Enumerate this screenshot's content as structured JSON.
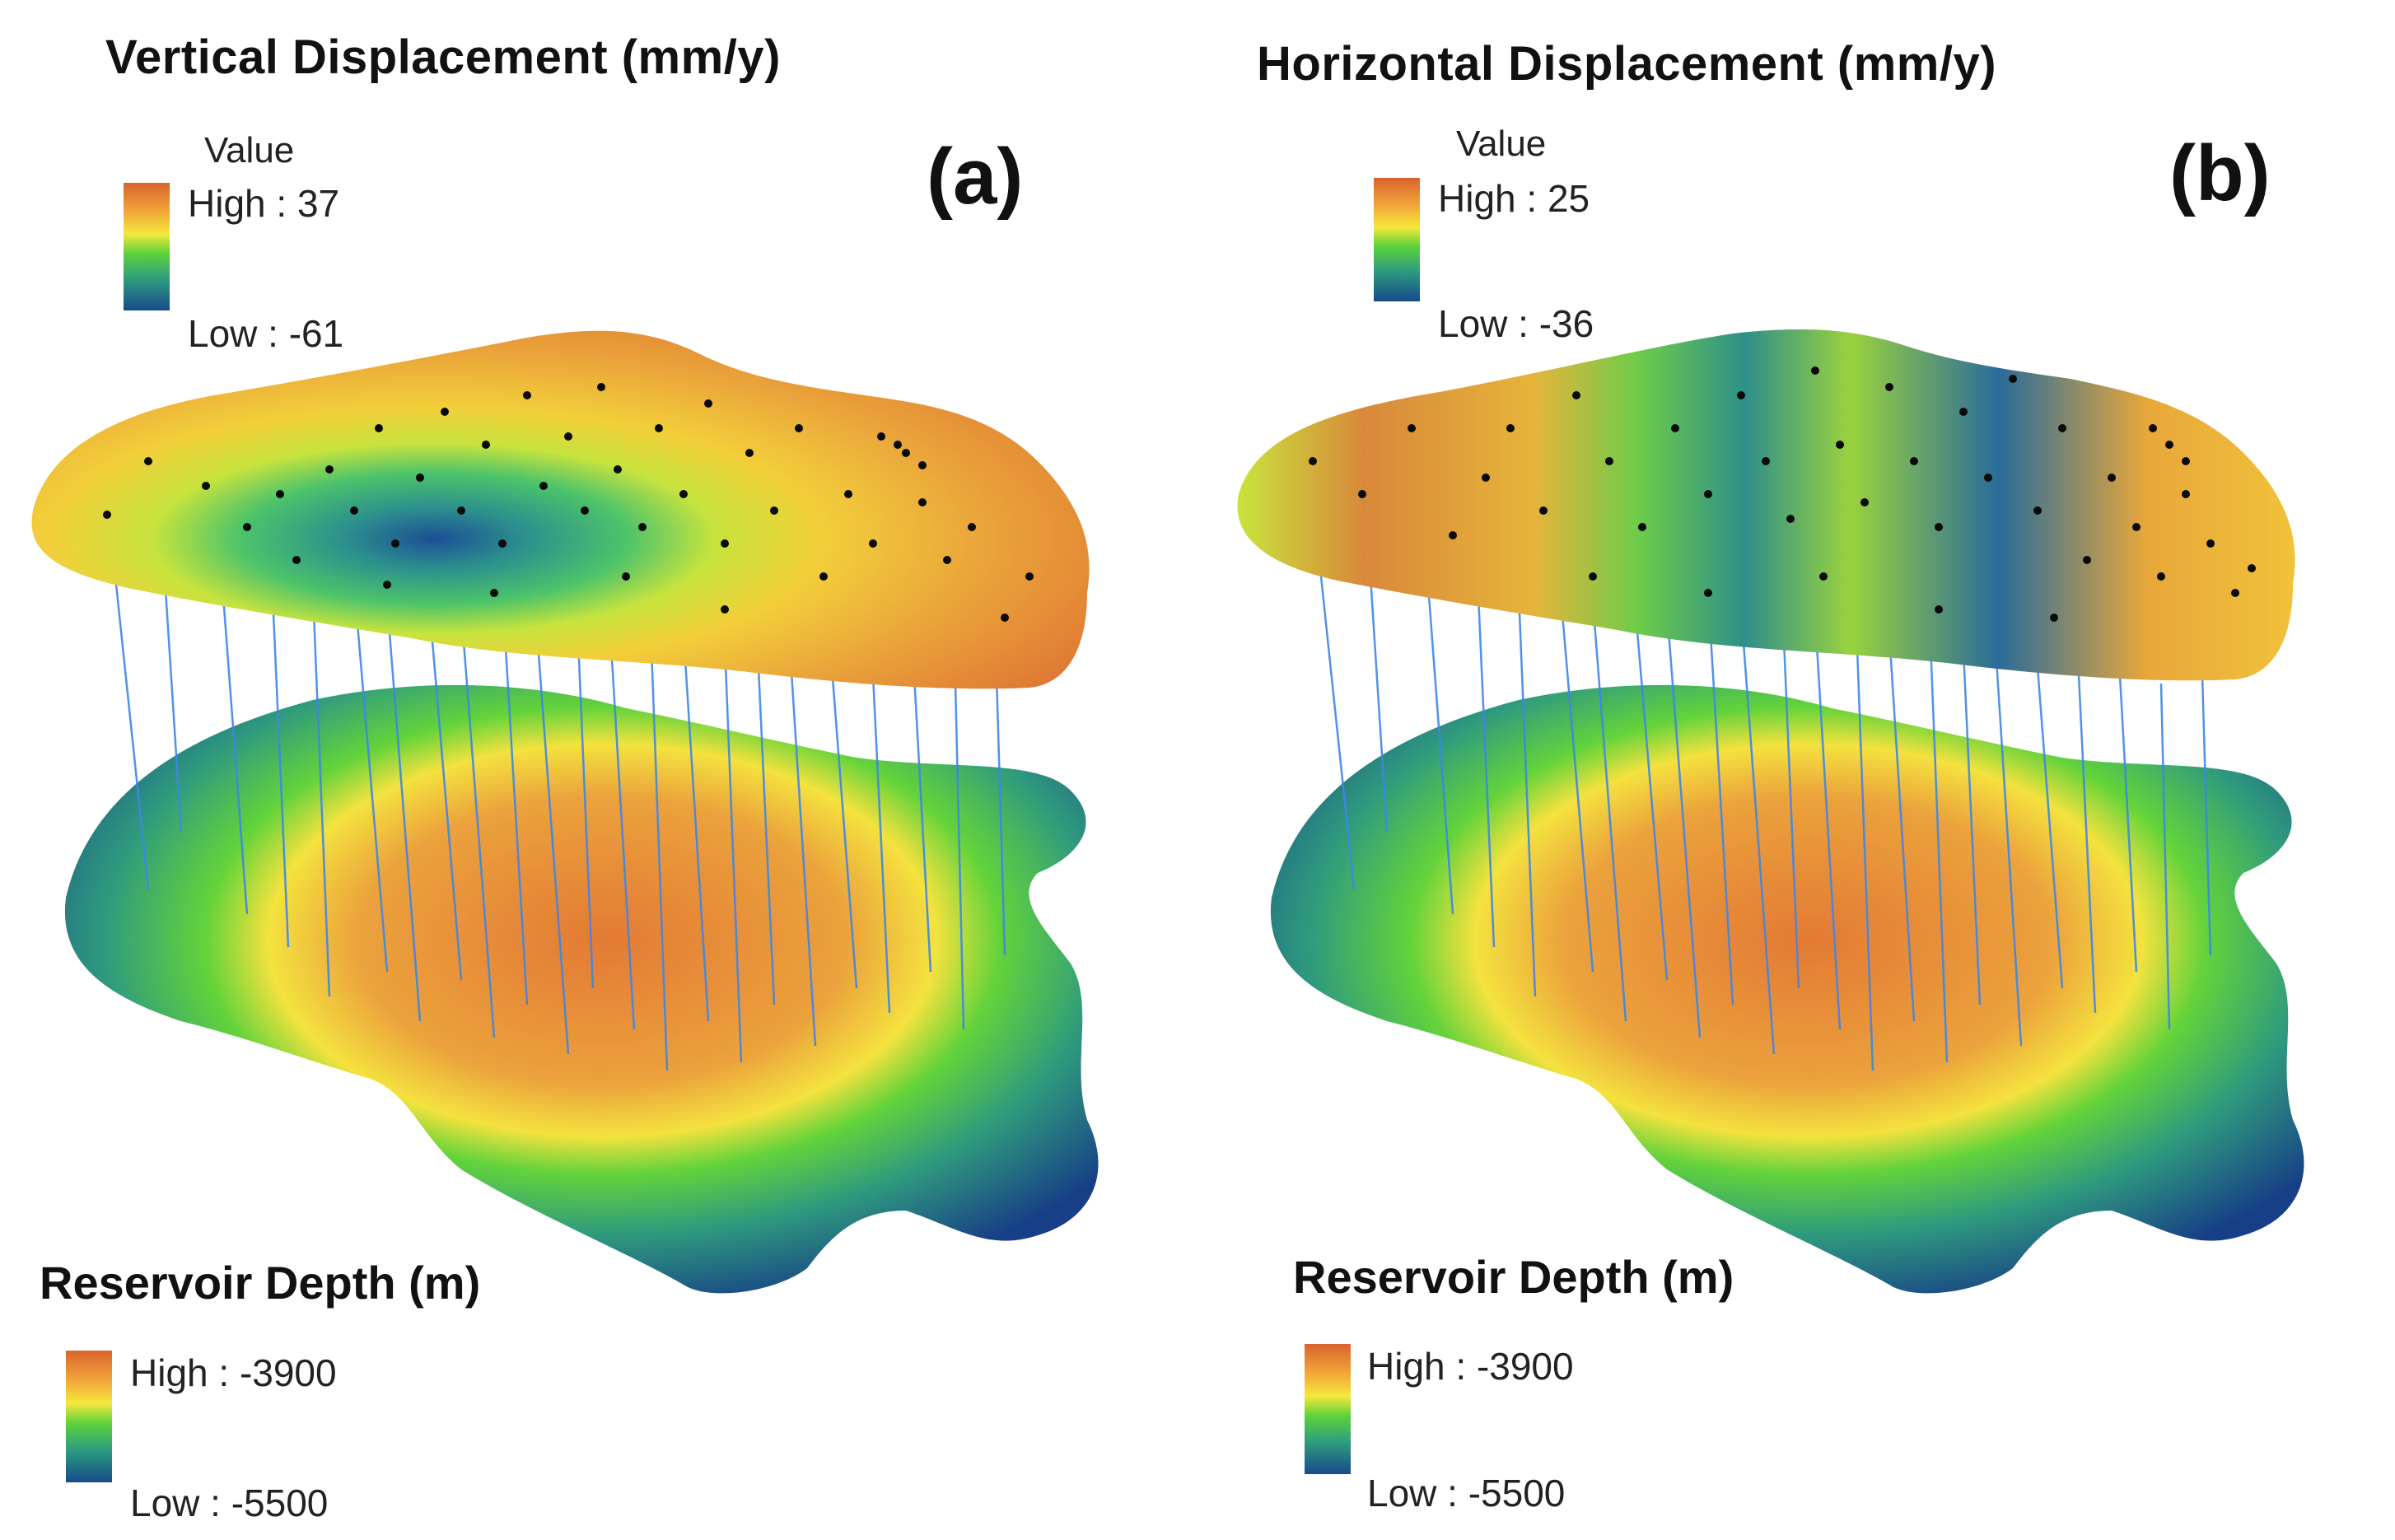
{
  "panels": [
    {
      "id": "a",
      "label": "(a)",
      "title": "Vertical Displacement (mm/y)",
      "top_legend": {
        "heading": "Value",
        "high": "High : 37",
        "low": "Low : -61"
      },
      "bottom_legend": {
        "title": "Reservoir Depth (m)",
        "high": "High : -3900",
        "low": "Low : -5500"
      }
    },
    {
      "id": "b",
      "label": "(b)",
      "title": "Horizontal Displacement (mm/y)",
      "top_legend": {
        "heading": "Value",
        "high": "High : 25",
        "low": "Low : -36"
      },
      "bottom_legend": {
        "title": "Reservoir Depth (m)",
        "high": "High : -3900",
        "low": "Low : -5500"
      }
    }
  ],
  "colors": {
    "ramp_high": "#d9642c",
    "ramp_orange": "#f1a43a",
    "ramp_yellow": "#f6e83c",
    "ramp_green": "#5ed33a",
    "ramp_teal": "#2e9e7e",
    "ramp_low": "#174a8c",
    "well_line": "#3f86e6",
    "well_dot": "#0a0a0a"
  }
}
